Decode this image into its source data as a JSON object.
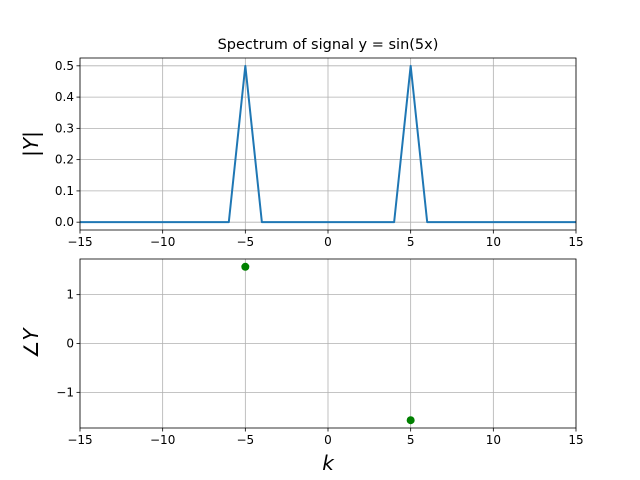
{
  "chart_data": [
    {
      "type": "line",
      "title": "Spectrum of signal y = sin(5x)",
      "xlabel": "",
      "ylabel": "|Y|",
      "xlim": [
        -15,
        15
      ],
      "ylim": [
        -0.025,
        0.525
      ],
      "xticks": [
        -15,
        -10,
        -5,
        0,
        5,
        10,
        15
      ],
      "xtick_labels": [
        "−15",
        "−10",
        "−5",
        "0",
        "5",
        "10",
        "15"
      ],
      "yticks": [
        0.0,
        0.1,
        0.2,
        0.3,
        0.4,
        0.5
      ],
      "ytick_labels": [
        "0.0",
        "0.1",
        "0.2",
        "0.3",
        "0.4",
        "0.5"
      ],
      "grid": true,
      "color": "#1f77b4",
      "series": [
        {
          "x": [
            -15,
            -14,
            -13,
            -12,
            -11,
            -10,
            -9,
            -8,
            -7,
            -6,
            -5,
            -4,
            -3,
            -2,
            -1,
            0,
            1,
            2,
            3,
            4,
            5,
            6,
            7,
            8,
            9,
            10,
            11,
            12,
            13,
            14,
            15
          ],
          "y": [
            0,
            0,
            0,
            0,
            0,
            0,
            0,
            0,
            0,
            0,
            0.5,
            0,
            0,
            0,
            0,
            0,
            0,
            0,
            0,
            0,
            0.5,
            0,
            0,
            0,
            0,
            0,
            0,
            0,
            0,
            0,
            0
          ]
        }
      ]
    },
    {
      "type": "scatter",
      "title": "",
      "xlabel": "k",
      "ylabel": "∠Y",
      "xlim": [
        -15,
        15
      ],
      "ylim": [
        -1.73,
        1.73
      ],
      "xticks": [
        -15,
        -10,
        -5,
        0,
        5,
        10,
        15
      ],
      "xtick_labels": [
        "−15",
        "−10",
        "−5",
        "0",
        "5",
        "10",
        "15"
      ],
      "yticks": [
        -1,
        0,
        1
      ],
      "ytick_labels": [
        "−1",
        "0",
        "1"
      ],
      "grid": true,
      "color": "#008000",
      "series": [
        {
          "x": [
            -5,
            5
          ],
          "y": [
            1.5708,
            -1.5708
          ]
        }
      ]
    }
  ]
}
